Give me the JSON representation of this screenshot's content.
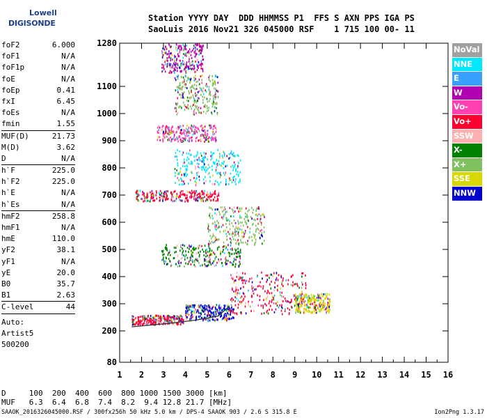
{
  "logo": {
    "line1": "Lowell",
    "line2": "DIGISONDE"
  },
  "header": {
    "line1": "Station YYYY DAY  DDD HHMMSS P1  FFS S AXN PPS IGA PS",
    "line2": "SaoLuis 2016 Nov21 326 045000 RSF    1 715 100 00- 11"
  },
  "params": [
    {
      "k": "foF2",
      "v": "6.000"
    },
    {
      "k": "foF1",
      "v": "N/A"
    },
    {
      "k": "foF1p",
      "v": "N/A"
    },
    {
      "k": "foE",
      "v": "N/A"
    },
    {
      "k": "foEp",
      "v": "0.41"
    },
    {
      "k": "fxI",
      "v": "6.45"
    },
    {
      "k": "foEs",
      "v": "N/A"
    },
    {
      "k": "fmin",
      "v": "1.55"
    },
    {
      "k": "MUF(D)",
      "v": "21.73"
    },
    {
      "k": "M(D)",
      "v": "3.62"
    },
    {
      "k": "D",
      "v": "N/A"
    },
    {
      "k": "h`F",
      "v": "225.0"
    },
    {
      "k": "h`F2",
      "v": "225.0"
    },
    {
      "k": "h`E",
      "v": "N/A"
    },
    {
      "k": "h`Es",
      "v": "N/A"
    },
    {
      "k": "hmF2",
      "v": "258.8"
    },
    {
      "k": "hmF1",
      "v": "N/A"
    },
    {
      "k": "hmE",
      "v": "110.0"
    },
    {
      "k": "yF2",
      "v": "38.1"
    },
    {
      "k": "yF1",
      "v": "N/A"
    },
    {
      "k": "yE",
      "v": "20.0"
    },
    {
      "k": "B0",
      "v": "35.7"
    },
    {
      "k": "B1",
      "v": "2.63"
    },
    {
      "k": "C-level",
      "v": "44"
    }
  ],
  "auto_lines": [
    "Auto:",
    "Artist5",
    "500200"
  ],
  "legend": [
    {
      "label": "NoVal",
      "color": "#a0a0a0"
    },
    {
      "label": "NNE",
      "color": "#00e8ff"
    },
    {
      "label": "E",
      "color": "#3aa0ff"
    },
    {
      "label": "W",
      "color": "#b000b0"
    },
    {
      "label": "Vo-",
      "color": "#ff40b0"
    },
    {
      "label": "Vo+",
      "color": "#ff0030"
    },
    {
      "label": "SSW",
      "color": "#ffb0b0"
    },
    {
      "label": "X-",
      "color": "#008000"
    },
    {
      "label": "X+",
      "color": "#80c060"
    },
    {
      "label": "SSE",
      "color": "#d8d800"
    },
    {
      "label": "NNW",
      "color": "#0000d0"
    }
  ],
  "footer": {
    "line1": "D     100  200  400  600  800 1000 1500 3000 [km]",
    "line2": "MUF   6.3  6.4  6.8  7.4  8.2  9.4 12.8 21.7 [MHz]"
  },
  "bottom_left": "SAAOK_2016326045000.RSF / 300fx256h 50 kHz 5.0 km / DPS-4 SAAOK 903 / 2.6 S 315.8 E",
  "bottom_right": "Ion2Png 1.3.17",
  "chart_data": {
    "type": "scatter",
    "x_ticks": [
      1,
      2,
      3,
      4,
      5,
      6,
      7,
      8,
      9,
      10,
      11,
      12,
      13,
      14,
      15,
      16
    ],
    "y_ticks": [
      80,
      200,
      300,
      400,
      500,
      600,
      700,
      800,
      900,
      1000,
      1100,
      1280
    ],
    "xlim": [
      1,
      16
    ],
    "ylim": [
      80,
      1280
    ],
    "x_unit": "MHz",
    "y_unit": "km",
    "clusters": [
      {
        "x": [
          1.55,
          3.9
        ],
        "y": [
          225,
          260
        ],
        "color": "Vo+"
      },
      {
        "x": [
          4.0,
          6.2
        ],
        "y": [
          240,
          300
        ],
        "color": "NNW"
      },
      {
        "x": [
          6.0,
          9.5
        ],
        "y": [
          265,
          420
        ],
        "color": "Vo+"
      },
      {
        "x": [
          9.0,
          10.6
        ],
        "y": [
          270,
          340
        ],
        "color": "SSE"
      },
      {
        "x": [
          2.9,
          6.5
        ],
        "y": [
          440,
          520
        ],
        "color": "X-"
      },
      {
        "x": [
          5.0,
          7.6
        ],
        "y": [
          520,
          660
        ],
        "color": "X+"
      },
      {
        "x": [
          1.7,
          5.5
        ],
        "y": [
          680,
          720
        ],
        "color": "Vo+"
      },
      {
        "x": [
          3.5,
          6.5
        ],
        "y": [
          740,
          870
        ],
        "color": "NNE"
      },
      {
        "x": [
          2.7,
          5.4
        ],
        "y": [
          900,
          960
        ],
        "color": "Vo-"
      },
      {
        "x": [
          3.5,
          5.5
        ],
        "y": [
          1000,
          1150
        ],
        "color": "X+"
      },
      {
        "x": [
          2.9,
          4.8
        ],
        "y": [
          1160,
          1280
        ],
        "color": "W"
      }
    ],
    "trace": {
      "x": [
        1.55,
        2.5,
        3.5,
        4.5,
        5.5,
        6.0
      ],
      "y": [
        215,
        222,
        230,
        240,
        255,
        290
      ]
    }
  }
}
